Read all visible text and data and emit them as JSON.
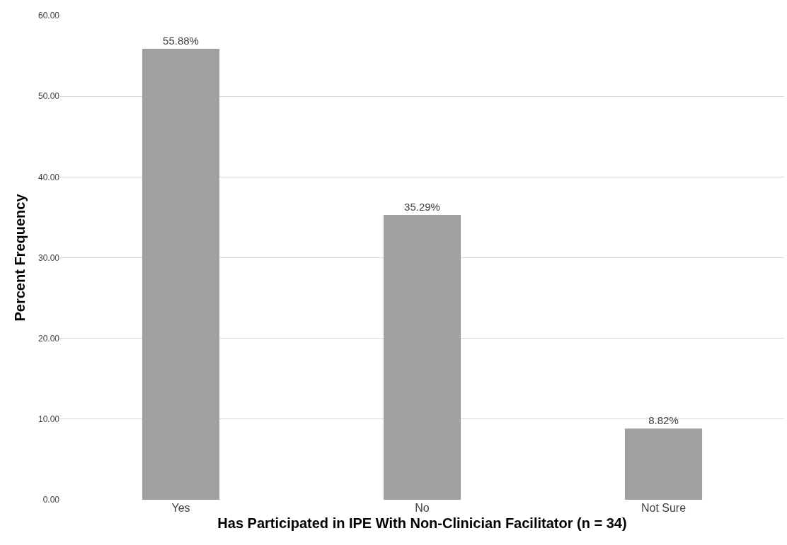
{
  "chart_data": {
    "type": "bar",
    "xlabel": "Has Participated in IPE With Non-Clinician Facilitator (n = 34)",
    "ylabel": "Percent Frequency",
    "categories": [
      "Yes",
      "No",
      "Not Sure"
    ],
    "values": [
      55.88,
      35.29,
      8.82
    ],
    "value_labels": [
      "55.88%",
      "35.29%",
      "8.82%"
    ],
    "color": "#a0a0a0",
    "ylim": [
      0,
      60
    ],
    "yticks": [
      {
        "value": 0,
        "label": "0.00"
      },
      {
        "value": 10,
        "label": "10.00"
      },
      {
        "value": 20,
        "label": "20.00"
      },
      {
        "value": 30,
        "label": "30.00"
      },
      {
        "value": 40,
        "label": "40.00"
      },
      {
        "value": 50,
        "label": "50.00"
      },
      {
        "value": 60,
        "label": "60.00"
      }
    ],
    "grid": "y"
  }
}
